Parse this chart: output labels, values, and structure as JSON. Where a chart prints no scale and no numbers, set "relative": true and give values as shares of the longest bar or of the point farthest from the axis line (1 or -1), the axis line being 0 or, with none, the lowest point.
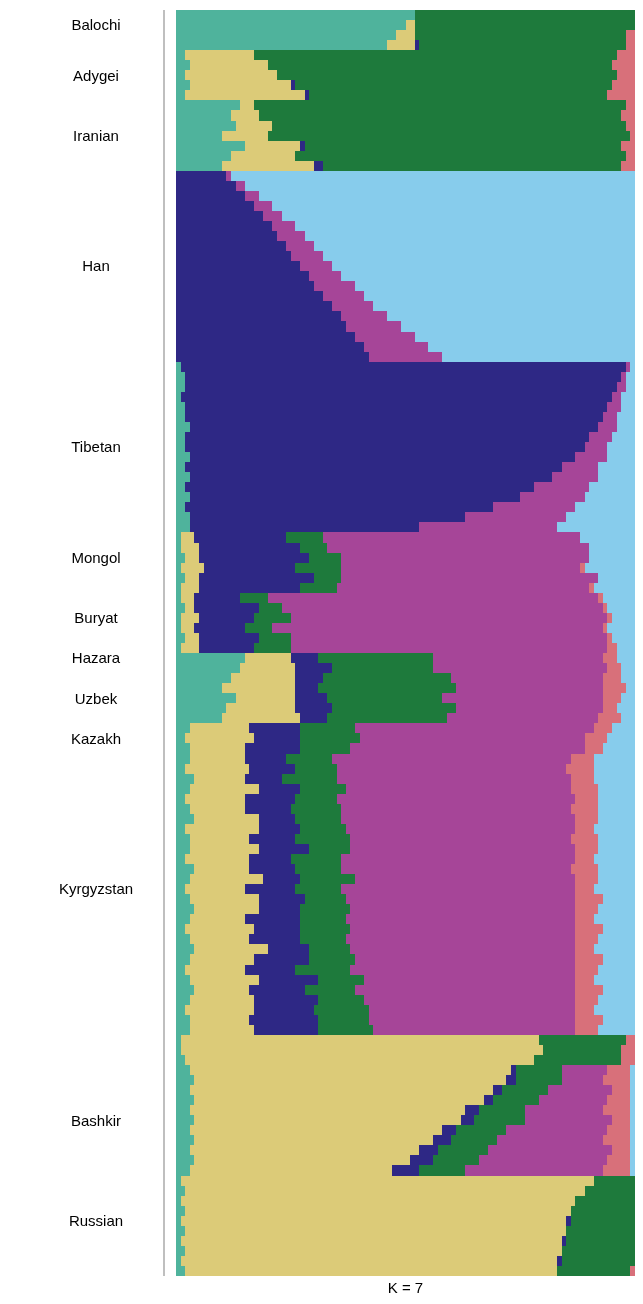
{
  "chart_data": {
    "type": "bar",
    "orientation": "horizontal",
    "stacked": true,
    "relative": true,
    "xlabel": "K = 7",
    "categories": [
      null,
      "Balochi",
      null,
      null,
      null,
      null,
      "Adygei",
      null,
      null,
      null,
      null,
      null,
      "Iranian",
      null,
      null,
      null,
      null,
      null,
      null,
      null,
      null,
      null,
      null,
      null,
      null,
      "Han",
      null,
      null,
      null,
      null,
      null,
      null,
      null,
      null,
      null,
      null,
      null,
      null,
      null,
      null,
      null,
      null,
      null,
      "Tibetan",
      null,
      null,
      null,
      null,
      null,
      null,
      null,
      null,
      null,
      null,
      "Mongol",
      null,
      null,
      null,
      null,
      null,
      "Buryat",
      null,
      null,
      null,
      "Hazara",
      null,
      null,
      null,
      "Uzbek",
      null,
      null,
      null,
      "Kazakh",
      null,
      null,
      null,
      null,
      null,
      null,
      null,
      null,
      null,
      null,
      null,
      null,
      null,
      null,
      "Kyrgyzstan",
      null,
      null,
      null,
      null,
      null,
      null,
      null,
      null,
      null,
      null,
      null,
      null,
      null,
      null,
      null,
      null,
      null,
      null,
      null,
      null,
      null,
      null,
      "Bashkir",
      null,
      null,
      null,
      null,
      null,
      null,
      null,
      null,
      null,
      "Russian",
      null,
      null,
      null,
      null,
      null
    ],
    "series": [
      {
        "color": "#4fb39c",
        "values": [
          0.52,
          0.5,
          0.48,
          0.46,
          0.02,
          0.03,
          0.02,
          0.03,
          0.02,
          0.14,
          0.12,
          0.13,
          0.1,
          0.15,
          0.12,
          0.1,
          0,
          0,
          0,
          0,
          0,
          0,
          0,
          0,
          0,
          0,
          0,
          0,
          0,
          0,
          0,
          0,
          0,
          0,
          0,
          0.01,
          0.02,
          0.02,
          0.01,
          0.02,
          0.02,
          0.03,
          0.02,
          0.02,
          0.03,
          0.02,
          0.03,
          0.02,
          0.03,
          0.02,
          0.03,
          0.03,
          0.01,
          0.01,
          0.02,
          0.01,
          0.02,
          0.01,
          0.01,
          0.02,
          0.01,
          0.01,
          0.02,
          0.01,
          0.15,
          0.14,
          0.12,
          0.1,
          0.13,
          0.11,
          0.1,
          0.03,
          0.02,
          0.03,
          0.03,
          0.02,
          0.04,
          0.03,
          0.02,
          0.03,
          0.04,
          0.02,
          0.03,
          0.03,
          0.02,
          0.04,
          0.03,
          0.02,
          0.03,
          0.04,
          0.03,
          0.02,
          0.03,
          0.04,
          0.03,
          0.02,
          0.03,
          0.04,
          0.03,
          0.02,
          0.03,
          0.03,
          0.01,
          0.01,
          0.02,
          0.03,
          0.04,
          0.03,
          0.04,
          0.03,
          0.04,
          0.03,
          0.04,
          0.03,
          0.04,
          0.03,
          0.01,
          0.02,
          0.01,
          0.02,
          0.01,
          0.02,
          0.01,
          0.02,
          0.01,
          0.02
        ]
      },
      {
        "color": "#dccb78",
        "values": [
          0,
          0.02,
          0.04,
          0.06,
          0.15,
          0.17,
          0.2,
          0.22,
          0.26,
          0.03,
          0.06,
          0.08,
          0.1,
          0.12,
          0.14,
          0.2,
          0,
          0,
          0,
          0,
          0,
          0,
          0,
          0,
          0,
          0,
          0,
          0,
          0,
          0,
          0,
          0,
          0,
          0,
          0,
          0,
          0,
          0,
          0,
          0,
          0,
          0,
          0,
          0,
          0,
          0,
          0,
          0,
          0,
          0,
          0,
          0,
          0.03,
          0.04,
          0.03,
          0.05,
          0.03,
          0.04,
          0.03,
          0.02,
          0.04,
          0.03,
          0.03,
          0.04,
          0.1,
          0.12,
          0.14,
          0.16,
          0.13,
          0.15,
          0.17,
          0.13,
          0.15,
          0.12,
          0.12,
          0.14,
          0.11,
          0.15,
          0.13,
          0.12,
          0.14,
          0.16,
          0.13,
          0.15,
          0.14,
          0.12,
          0.16,
          0.13,
          0.15,
          0.14,
          0.12,
          0.15,
          0.13,
          0.16,
          0.14,
          0.13,
          0.15,
          0.12,
          0.14,
          0.15,
          0.13,
          0.14,
          0.78,
          0.79,
          0.76,
          0.7,
          0.68,
          0.66,
          0.63,
          0.6,
          0.58,
          0.55,
          0.52,
          0.5,
          0.47,
          0.44,
          0.9,
          0.87,
          0.86,
          0.84,
          0.84,
          0.83,
          0.83,
          0.82,
          0.82,
          0.81
        ]
      },
      {
        "color": "#2e2885",
        "values": [
          0,
          0,
          0,
          0.01,
          0,
          0,
          0,
          0.01,
          0.01,
          0,
          0,
          0,
          0,
          0.01,
          0,
          0.02,
          0.11,
          0.13,
          0.15,
          0.17,
          0.19,
          0.21,
          0.22,
          0.24,
          0.25,
          0.27,
          0.29,
          0.3,
          0.32,
          0.34,
          0.36,
          0.37,
          0.39,
          0.41,
          0.42,
          0.97,
          0.95,
          0.94,
          0.94,
          0.92,
          0.91,
          0.89,
          0.88,
          0.87,
          0.84,
          0.82,
          0.79,
          0.76,
          0.72,
          0.67,
          0.6,
          0.5,
          0.2,
          0.22,
          0.24,
          0.2,
          0.25,
          0.22,
          0.1,
          0.14,
          0.12,
          0.11,
          0.13,
          0.12,
          0.06,
          0.08,
          0.06,
          0.05,
          0.07,
          0.08,
          0.06,
          0.11,
          0.1,
          0.12,
          0.09,
          0.1,
          0.08,
          0.09,
          0.11,
          0.1,
          0.08,
          0.09,
          0.1,
          0.11,
          0.09,
          0.1,
          0.08,
          0.11,
          0.1,
          0.09,
          0.12,
          0.1,
          0.11,
          0.09,
          0.12,
          0.11,
          0.13,
          0.12,
          0.14,
          0.13,
          0.15,
          0.14,
          0,
          0,
          0,
          0.01,
          0.02,
          0.02,
          0.02,
          0.03,
          0.03,
          0.03,
          0.04,
          0.04,
          0.05,
          0.06,
          0,
          0,
          0,
          0,
          0.01,
          0,
          0.01,
          0,
          0.01,
          0
        ]
      },
      {
        "color": "#1e7a3c",
        "values": [
          0.48,
          0.48,
          0.46,
          0.45,
          0.79,
          0.75,
          0.74,
          0.69,
          0.65,
          0.81,
          0.79,
          0.77,
          0.79,
          0.69,
          0.72,
          0.65,
          0,
          0,
          0,
          0,
          0,
          0,
          0,
          0,
          0,
          0,
          0,
          0,
          0,
          0,
          0,
          0,
          0,
          0,
          0,
          0,
          0,
          0,
          0,
          0,
          0,
          0,
          0,
          0,
          0,
          0,
          0,
          0,
          0,
          0,
          0,
          0,
          0.08,
          0.06,
          0.07,
          0.1,
          0.06,
          0.08,
          0.06,
          0.05,
          0.08,
          0.06,
          0.07,
          0.08,
          0.25,
          0.22,
          0.28,
          0.3,
          0.25,
          0.27,
          0.26,
          0.12,
          0.13,
          0.11,
          0.1,
          0.09,
          0.12,
          0.1,
          0.09,
          0.11,
          0.1,
          0.1,
          0.12,
          0.09,
          0.11,
          0.1,
          0.12,
          0.1,
          0.09,
          0.11,
          0.1,
          0.11,
          0.1,
          0.09,
          0.1,
          0.12,
          0.1,
          0.11,
          0.1,
          0.12,
          0.11,
          0.12,
          0.19,
          0.17,
          0.19,
          0.1,
          0.1,
          0.1,
          0.1,
          0.1,
          0.11,
          0.11,
          0.1,
          0.11,
          0.1,
          0.1,
          0.09,
          0.11,
          0.13,
          0.14,
          0.14,
          0.15,
          0.15,
          0.16,
          0.16,
          0.16
        ]
      },
      {
        "color": "#a64598",
        "values": [
          0,
          0,
          0,
          0,
          0,
          0,
          0,
          0,
          0,
          0,
          0,
          0,
          0,
          0,
          0,
          0,
          0.01,
          0.02,
          0.03,
          0.04,
          0.04,
          0.05,
          0.06,
          0.06,
          0.07,
          0.07,
          0.07,
          0.09,
          0.09,
          0.09,
          0.1,
          0.12,
          0.13,
          0.14,
          0.16,
          0.01,
          0.01,
          0.02,
          0.02,
          0.03,
          0.03,
          0.04,
          0.05,
          0.05,
          0.07,
          0.08,
          0.1,
          0.12,
          0.14,
          0.18,
          0.22,
          0.3,
          0.56,
          0.57,
          0.54,
          0.52,
          0.56,
          0.55,
          0.72,
          0.7,
          0.69,
          0.72,
          0.69,
          0.69,
          0.37,
          0.38,
          0.33,
          0.32,
          0.35,
          0.32,
          0.33,
          0.52,
          0.49,
          0.51,
          0.52,
          0.5,
          0.51,
          0.49,
          0.52,
          0.5,
          0.51,
          0.5,
          0.48,
          0.49,
          0.51,
          0.5,
          0.48,
          0.51,
          0.5,
          0.49,
          0.5,
          0.49,
          0.5,
          0.49,
          0.48,
          0.49,
          0.46,
          0.48,
          0.46,
          0.45,
          0.45,
          0.44,
          0,
          0,
          0,
          0.1,
          0.09,
          0.14,
          0.15,
          0.17,
          0.19,
          0.22,
          0.23,
          0.27,
          0.28,
          0.3,
          0,
          0,
          0,
          0,
          0,
          0,
          0,
          0,
          0,
          0
        ]
      },
      {
        "color": "#d8707a",
        "values": [
          0,
          0,
          0.02,
          0.02,
          0.04,
          0.05,
          0.04,
          0.05,
          0.06,
          0.02,
          0.03,
          0.02,
          0.01,
          0.03,
          0.02,
          0.03,
          0,
          0,
          0,
          0,
          0,
          0,
          0,
          0,
          0,
          0,
          0,
          0,
          0,
          0,
          0,
          0,
          0,
          0,
          0,
          0,
          0,
          0,
          0,
          0,
          0,
          0,
          0,
          0,
          0,
          0,
          0,
          0,
          0,
          0,
          0,
          0,
          0,
          0,
          0,
          0.01,
          0,
          0.01,
          0.01,
          0.01,
          0.01,
          0.01,
          0.01,
          0.02,
          0.03,
          0.03,
          0.04,
          0.05,
          0.04,
          0.03,
          0.05,
          0.04,
          0.05,
          0.04,
          0.05,
          0.06,
          0.05,
          0.06,
          0.05,
          0.06,
          0.05,
          0.04,
          0.06,
          0.05,
          0.04,
          0.06,
          0.05,
          0.04,
          0.06,
          0.05,
          0.04,
          0.06,
          0.05,
          0.04,
          0.06,
          0.05,
          0.04,
          0.06,
          0.05,
          0.04,
          0.06,
          0.05,
          0.02,
          0.03,
          0.03,
          0.05,
          0.06,
          0.04,
          0.05,
          0.06,
          0.04,
          0.05,
          0.06,
          0.04,
          0.05,
          0.06,
          0,
          0,
          0,
          0,
          0,
          0,
          0,
          0,
          0,
          0.01
        ]
      },
      {
        "color": "#87ccec",
        "values": [
          0,
          0,
          0,
          0,
          0,
          0,
          0,
          0,
          0,
          0,
          0,
          0,
          0,
          0,
          0,
          0,
          0.88,
          0.85,
          0.82,
          0.79,
          0.77,
          0.74,
          0.72,
          0.7,
          0.68,
          0.66,
          0.64,
          0.61,
          0.59,
          0.57,
          0.54,
          0.51,
          0.48,
          0.45,
          0.42,
          0.01,
          0.02,
          0.02,
          0.03,
          0.03,
          0.04,
          0.04,
          0.05,
          0.06,
          0.06,
          0.08,
          0.08,
          0.1,
          0.11,
          0.13,
          0.15,
          0.17,
          0.12,
          0.1,
          0.1,
          0.11,
          0.08,
          0.09,
          0.07,
          0.06,
          0.05,
          0.06,
          0.05,
          0.04,
          0.04,
          0.03,
          0.03,
          0.02,
          0.03,
          0.04,
          0.03,
          0.05,
          0.06,
          0.07,
          0.09,
          0.09,
          0.09,
          0.08,
          0.08,
          0.08,
          0.08,
          0.09,
          0.08,
          0.08,
          0.09,
          0.08,
          0.08,
          0.09,
          0.07,
          0.08,
          0.09,
          0.07,
          0.08,
          0.09,
          0.07,
          0.08,
          0.09,
          0.07,
          0.08,
          0.09,
          0.07,
          0.08,
          0,
          0,
          0,
          0.01,
          0.01,
          0.01,
          0.01,
          0.01,
          0.01,
          0.01,
          0.01,
          0.01,
          0.01,
          0.01,
          0,
          0,
          0,
          0,
          0,
          0,
          0,
          0,
          0,
          0
        ]
      }
    ]
  }
}
